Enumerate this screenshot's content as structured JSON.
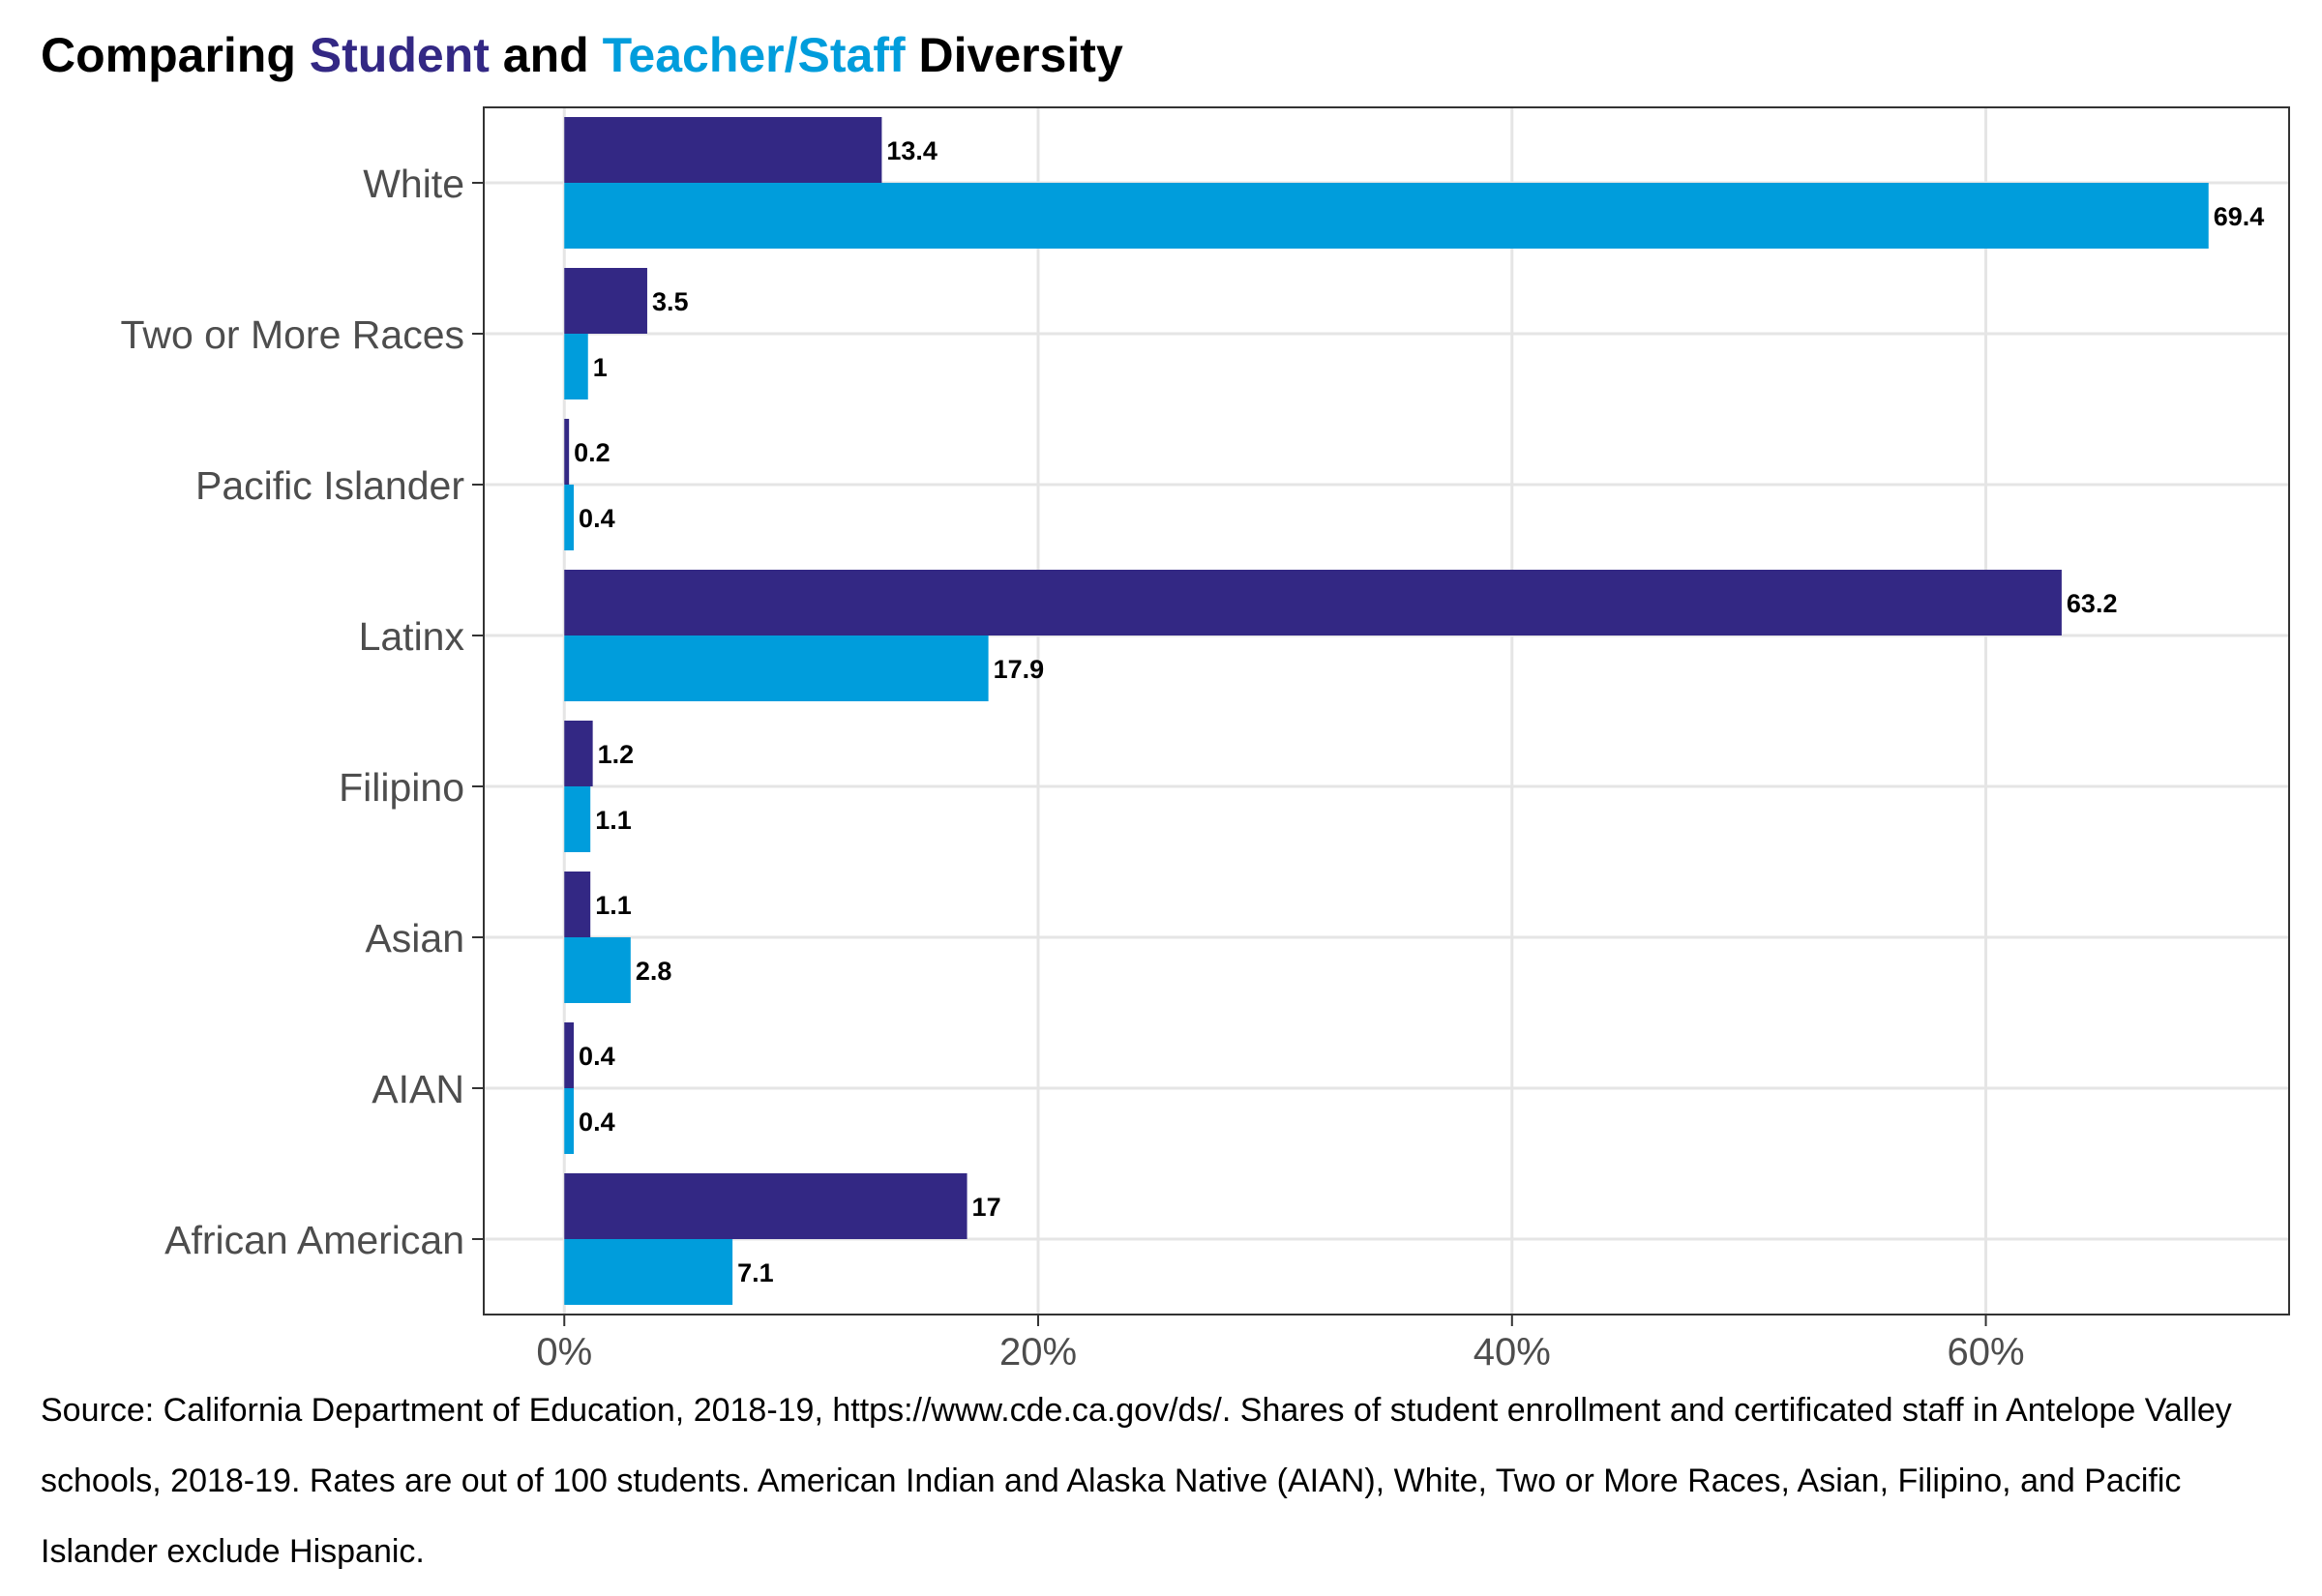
{
  "title": {
    "part1": "Comparing ",
    "student": "Student",
    "part2": " and ",
    "teacher": "Teacher/Staff",
    "part3": " Diversity"
  },
  "colors": {
    "student": "#332884",
    "teacher": "#009ddc",
    "grid": "#e5e5e5",
    "axis": "#333333"
  },
  "chart_data": {
    "type": "bar",
    "orientation": "horizontal",
    "title": "Comparing Student and Teacher/Staff Diversity",
    "categories": [
      "White",
      "Two or More Races",
      "Pacific Islander",
      "Latinx",
      "Filipino",
      "Asian",
      "AIAN",
      "African American"
    ],
    "series": [
      {
        "name": "Student",
        "values": [
          13.4,
          3.5,
          0.2,
          63.2,
          1.2,
          1.1,
          0.4,
          17
        ],
        "labels": [
          "13.4",
          "3.5",
          "0.2",
          "63.2",
          "1.2",
          "1.1",
          "0.4",
          "17"
        ]
      },
      {
        "name": "Teacher/Staff",
        "values": [
          69.4,
          1,
          0.4,
          17.9,
          1.1,
          2.8,
          0.4,
          7.1
        ],
        "labels": [
          "69.4",
          "1",
          "0.4",
          "17.9",
          "1.1",
          "2.8",
          "0.4",
          "7.1"
        ]
      }
    ],
    "xlim": [
      -3.4,
      72.8
    ],
    "xticks": [
      0,
      20,
      40,
      60
    ],
    "xtick_labels": [
      "0%",
      "20%",
      "40%",
      "60%"
    ],
    "xlabel": "",
    "ylabel": "",
    "grid": true,
    "legend": "none (series colors named in title)"
  },
  "source_note": "Source: California Department of Education, 2018-19, https://www.cde.ca.gov/ds/. Shares of student enrollment and certificated staff in Antelope Valley schools, 2018-19. Rates are out of 100 students. American Indian and Alaska Native (AIAN), White, Two or More Races, Asian, Filipino, and Pacific Islander exclude Hispanic."
}
